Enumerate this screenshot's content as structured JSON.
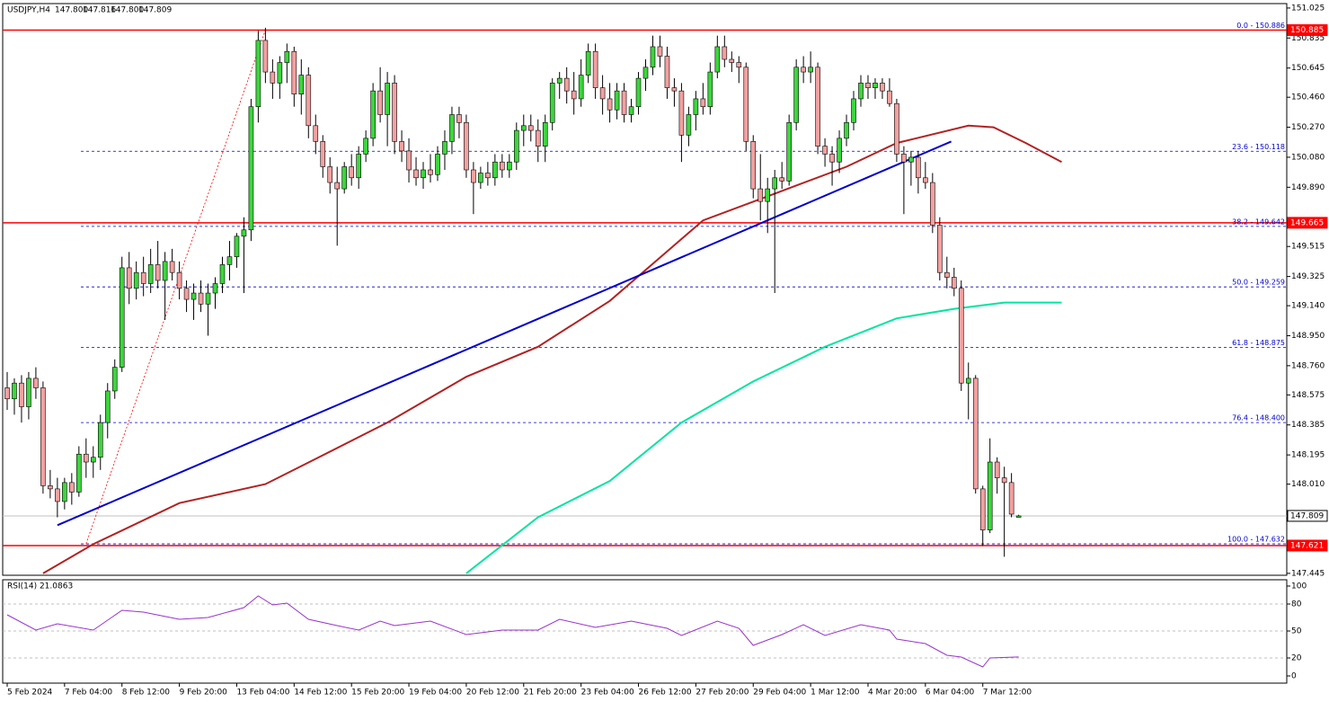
{
  "chart_data": [
    {
      "type": "candlestick",
      "title": "USDJPY,H4",
      "ohlc_text": [
        "147.800",
        "147.816",
        "147.800",
        "147.809"
      ],
      "xlim": [
        -0.625,
        178.375
      ],
      "ylim": [
        147.433,
        151.053
      ],
      "yticks": [
        151.025,
        150.835,
        150.645,
        {
          "value": 150.46,
          "label": "150.460"
        },
        {
          "value": 150.27,
          "label": "150.270"
        },
        {
          "value": 150.08,
          "label": "150.080"
        },
        {
          "value": 149.89,
          "label": "149.890"
        },
        149.515,
        149.325,
        {
          "value": 149.14,
          "label": "149.140"
        },
        {
          "value": 148.95,
          "label": "148.950"
        },
        {
          "value": 148.76,
          "label": "148.760"
        },
        148.575,
        148.385,
        148.195,
        {
          "value": 148.01,
          "label": "148.010"
        },
        147.445
      ],
      "xticks": [
        {
          "value": 0,
          "label": "5 Feb 2024"
        },
        {
          "value": 8,
          "label": "7 Feb 04:00"
        },
        {
          "value": 16,
          "label": "8 Feb 12:00"
        },
        {
          "value": 24,
          "label": "9 Feb 20:00"
        },
        {
          "value": 32,
          "label": "13 Feb 04:00"
        },
        {
          "value": 40,
          "label": "14 Feb 12:00"
        },
        {
          "value": 48,
          "label": "15 Feb 20:00"
        },
        {
          "value": 56,
          "label": "19 Feb 04:00"
        },
        {
          "value": 64,
          "label": "20 Feb 12:00"
        },
        {
          "value": 72,
          "label": "21 Feb 20:00"
        },
        {
          "value": 80,
          "label": "23 Feb 04:00"
        },
        {
          "value": 88,
          "label": "26 Feb 12:00"
        },
        {
          "value": 96,
          "label": "27 Feb 20:00"
        },
        {
          "value": 104,
          "label": "29 Feb 04:00"
        },
        {
          "value": 112,
          "label": "1 Mar 12:00"
        },
        {
          "value": 120,
          "label": "4 Mar 20:00"
        },
        {
          "value": 128,
          "label": "6 Mar 04:00"
        },
        {
          "value": 136,
          "label": "7 Mar 12:00"
        }
      ],
      "up_color": "#3cd63c",
      "down_color": "#f4a0a0",
      "ohlc": [
        [
          148.62,
          148.72,
          148.48,
          148.55
        ],
        [
          148.55,
          148.68,
          148.45,
          148.65
        ],
        [
          148.65,
          148.7,
          148.4,
          148.5
        ],
        [
          148.5,
          148.72,
          148.42,
          148.68
        ],
        [
          148.68,
          148.75,
          148.55,
          148.62
        ],
        [
          148.62,
          148.66,
          147.95,
          148.0
        ],
        [
          148.0,
          148.1,
          147.92,
          147.98
        ],
        [
          147.98,
          148.05,
          147.8,
          147.9
        ],
        [
          147.9,
          148.05,
          147.85,
          148.02
        ],
        [
          148.02,
          148.08,
          147.88,
          147.96
        ],
        [
          147.96,
          148.25,
          147.93,
          148.2
        ],
        [
          148.2,
          148.3,
          148.05,
          148.15
        ],
        [
          148.15,
          148.25,
          148.05,
          148.18
        ],
        [
          148.18,
          148.45,
          148.1,
          148.4
        ],
        [
          148.4,
          148.65,
          148.3,
          148.6
        ],
        [
          148.6,
          148.8,
          148.55,
          148.75
        ],
        [
          148.75,
          149.45,
          148.72,
          149.38
        ],
        [
          149.38,
          149.48,
          149.15,
          149.25
        ],
        [
          149.25,
          149.42,
          149.18,
          149.35
        ],
        [
          149.35,
          149.45,
          149.2,
          149.28
        ],
        [
          149.28,
          149.5,
          149.22,
          149.4
        ],
        [
          149.4,
          149.55,
          149.25,
          149.3
        ],
        [
          149.3,
          149.48,
          149.05,
          149.42
        ],
        [
          149.42,
          149.5,
          149.3,
          149.35
        ],
        [
          149.35,
          149.42,
          149.18,
          149.25
        ],
        [
          149.25,
          149.3,
          149.1,
          149.18
        ],
        [
          149.18,
          149.28,
          149.05,
          149.22
        ],
        [
          149.22,
          149.3,
          149.1,
          149.15
        ],
        [
          149.15,
          149.28,
          148.95,
          149.22
        ],
        [
          149.22,
          149.32,
          149.12,
          149.28
        ],
        [
          149.28,
          149.45,
          149.22,
          149.4
        ],
        [
          149.4,
          149.55,
          149.3,
          149.45
        ],
        [
          149.45,
          149.6,
          149.38,
          149.58
        ],
        [
          149.58,
          149.7,
          149.22,
          149.62
        ],
        [
          149.62,
          150.45,
          149.55,
          150.4
        ],
        [
          150.4,
          150.88,
          150.3,
          150.82
        ],
        [
          150.82,
          150.9,
          150.55,
          150.62
        ],
        [
          150.62,
          150.7,
          150.45,
          150.55
        ],
        [
          150.55,
          150.72,
          150.45,
          150.68
        ],
        [
          150.68,
          150.8,
          150.55,
          150.75
        ],
        [
          150.75,
          150.78,
          150.4,
          150.48
        ],
        [
          150.48,
          150.7,
          150.35,
          150.6
        ],
        [
          150.6,
          150.65,
          150.2,
          150.28
        ],
        [
          150.28,
          150.35,
          150.1,
          150.18
        ],
        [
          150.18,
          150.22,
          149.95,
          150.02
        ],
        [
          150.02,
          150.08,
          149.85,
          149.92
        ],
        [
          149.92,
          150.02,
          149.52,
          149.88
        ],
        [
          149.88,
          150.05,
          149.85,
          150.02
        ],
        [
          150.02,
          150.1,
          149.9,
          149.95
        ],
        [
          149.95,
          150.15,
          149.88,
          150.1
        ],
        [
          150.1,
          150.25,
          150.05,
          150.2
        ],
        [
          150.2,
          150.55,
          150.15,
          150.5
        ],
        [
          150.5,
          150.65,
          150.3,
          150.35
        ],
        [
          150.35,
          150.62,
          150.15,
          150.55
        ],
        [
          150.55,
          150.6,
          150.1,
          150.18
        ],
        [
          150.18,
          150.25,
          150.05,
          150.12
        ],
        [
          150.12,
          150.2,
          149.92,
          150.0
        ],
        [
          150.0,
          150.08,
          149.9,
          149.95
        ],
        [
          149.95,
          150.05,
          149.88,
          150.0
        ],
        [
          150.0,
          150.1,
          149.92,
          149.97
        ],
        [
          149.97,
          150.15,
          149.93,
          150.1
        ],
        [
          150.1,
          150.25,
          150.0,
          150.18
        ],
        [
          150.18,
          150.4,
          150.1,
          150.35
        ],
        [
          150.35,
          150.4,
          150.2,
          150.3
        ],
        [
          150.3,
          150.35,
          149.95,
          150.0
        ],
        [
          150.0,
          150.05,
          149.72,
          149.92
        ],
        [
          149.92,
          150.02,
          149.88,
          149.98
        ],
        [
          149.98,
          150.05,
          149.9,
          149.95
        ],
        [
          149.95,
          150.1,
          149.9,
          150.05
        ],
        [
          150.05,
          150.1,
          149.95,
          150.0
        ],
        [
          150.0,
          150.1,
          149.95,
          150.05
        ],
        [
          150.05,
          150.3,
          150.0,
          150.25
        ],
        [
          150.25,
          150.35,
          150.15,
          150.28
        ],
        [
          150.28,
          150.35,
          150.18,
          150.25
        ],
        [
          150.25,
          150.32,
          150.05,
          150.15
        ],
        [
          150.15,
          150.35,
          150.05,
          150.3
        ],
        [
          150.3,
          150.58,
          150.25,
          150.55
        ],
        [
          150.55,
          150.62,
          150.45,
          150.58
        ],
        [
          150.58,
          150.65,
          150.42,
          150.5
        ],
        [
          150.5,
          150.62,
          150.35,
          150.45
        ],
        [
          150.45,
          150.7,
          150.4,
          150.6
        ],
        [
          150.6,
          150.8,
          150.55,
          150.75
        ],
        [
          150.75,
          150.8,
          150.45,
          150.52
        ],
        [
          150.52,
          150.6,
          150.35,
          150.45
        ],
        [
          150.45,
          150.55,
          150.3,
          150.38
        ],
        [
          150.38,
          150.55,
          150.32,
          150.5
        ],
        [
          150.5,
          150.55,
          150.3,
          150.35
        ],
        [
          150.35,
          150.45,
          150.3,
          150.4
        ],
        [
          150.4,
          150.62,
          150.35,
          150.58
        ],
        [
          150.58,
          150.7,
          150.5,
          150.65
        ],
        [
          150.65,
          150.85,
          150.6,
          150.78
        ],
        [
          150.78,
          150.85,
          150.65,
          150.72
        ],
        [
          150.72,
          150.78,
          150.45,
          150.52
        ],
        [
          150.52,
          150.58,
          150.4,
          150.5
        ],
        [
          150.5,
          150.55,
          150.05,
          150.22
        ],
        [
          150.22,
          150.4,
          150.15,
          150.35
        ],
        [
          150.35,
          150.5,
          150.25,
          150.45
        ],
        [
          150.45,
          150.55,
          150.35,
          150.4
        ],
        [
          150.4,
          150.68,
          150.35,
          150.62
        ],
        [
          150.62,
          150.85,
          150.58,
          150.78
        ],
        [
          150.78,
          150.85,
          150.65,
          150.7
        ],
        [
          150.7,
          150.75,
          150.62,
          150.68
        ],
        [
          150.68,
          150.72,
          150.55,
          150.65
        ],
        [
          150.65,
          150.68,
          150.12,
          150.18
        ],
        [
          150.18,
          150.22,
          149.82,
          149.88
        ],
        [
          149.88,
          150.1,
          149.68,
          149.8
        ],
        [
          149.8,
          149.95,
          149.6,
          149.88
        ],
        [
          149.88,
          150.0,
          149.22,
          149.95
        ],
        [
          149.95,
          150.05,
          149.88,
          149.93
        ],
        [
          149.93,
          150.35,
          149.9,
          150.3
        ],
        [
          150.3,
          150.7,
          150.25,
          150.65
        ],
        [
          150.65,
          150.72,
          150.55,
          150.62
        ],
        [
          150.62,
          150.75,
          150.55,
          150.65
        ],
        [
          150.65,
          150.68,
          150.1,
          150.15
        ],
        [
          150.15,
          150.2,
          150.02,
          150.1
        ],
        [
          150.1,
          150.15,
          149.9,
          150.05
        ],
        [
          150.05,
          150.25,
          149.98,
          150.2
        ],
        [
          150.2,
          150.35,
          150.15,
          150.3
        ],
        [
          150.3,
          150.5,
          150.25,
          150.45
        ],
        [
          150.45,
          150.6,
          150.4,
          150.55
        ],
        [
          150.55,
          150.6,
          150.45,
          150.52
        ],
        [
          150.52,
          150.58,
          150.45,
          150.55
        ],
        [
          150.55,
          150.58,
          150.45,
          150.5
        ],
        [
          150.5,
          150.58,
          150.4,
          150.42
        ],
        [
          150.42,
          150.45,
          150.05,
          150.1
        ],
        [
          150.1,
          150.15,
          149.72,
          150.05
        ],
        [
          150.05,
          150.12,
          149.9,
          150.08
        ],
        [
          150.08,
          150.12,
          149.85,
          149.95
        ],
        [
          149.95,
          150.05,
          149.88,
          149.92
        ],
        [
          149.92,
          149.98,
          149.6,
          149.65
        ],
        [
          149.65,
          149.7,
          149.3,
          149.35
        ],
        [
          149.35,
          149.45,
          149.25,
          149.32
        ],
        [
          149.32,
          149.38,
          149.2,
          149.25
        ],
        [
          149.25,
          149.3,
          148.6,
          148.65
        ],
        [
          148.65,
          148.78,
          148.42,
          148.68
        ],
        [
          148.68,
          148.7,
          147.95,
          147.98
        ],
        [
          147.98,
          148.0,
          147.62,
          147.72
        ],
        [
          147.72,
          148.3,
          147.7,
          148.15
        ],
        [
          148.15,
          148.18,
          147.95,
          148.05
        ],
        [
          148.05,
          148.12,
          147.55,
          148.02
        ],
        [
          148.02,
          148.08,
          147.8,
          147.82
        ],
        [
          147.8,
          147.816,
          147.8,
          147.809
        ]
      ],
      "overlays": [
        {
          "color": "#b22222",
          "x": [
            5,
            12,
            24,
            36,
            43,
            53,
            64,
            74,
            84,
            97,
            107,
            117,
            124,
            134,
            137.5,
            142,
            147
          ],
          "values": [
            147.445,
            147.63,
            147.89,
            148.01,
            148.17,
            148.4,
            148.69,
            148.88,
            149.17,
            149.68,
            149.85,
            150.02,
            150.17,
            150.28,
            150.27,
            150.17,
            150.05
          ]
        },
        {
          "color": "#00e5a0",
          "x": [
            64,
            74,
            84,
            94,
            104,
            114,
            124,
            132,
            139,
            147
          ],
          "values": [
            147.445,
            147.8,
            148.03,
            148.4,
            148.66,
            148.88,
            149.06,
            149.12,
            149.16,
            149.16
          ]
        },
        {
          "color": "#0000cd",
          "x": [
            7,
            131.6
          ],
          "values": [
            147.75,
            150.18
          ]
        },
        {
          "color": "#ff0000",
          "dashed": true,
          "x": [
            11,
            36
          ],
          "values": [
            147.632,
            150.886
          ]
        }
      ],
      "hlines": [
        150.885,
        149.665,
        147.621
      ],
      "hline_color": "#ff0000",
      "last_price": 147.809,
      "fib_color": "#0000cc",
      "fib": [
        {
          "label": "0.0 - 150.886",
          "value": 150.886
        },
        {
          "label": "23.6 - 150.118",
          "value": 150.118
        },
        {
          "label": "38.2 - 149.642",
          "value": 149.642
        },
        {
          "label": "50.0 - 149.259",
          "value": 149.259
        },
        {
          "label": "61.8 - 148.875",
          "value": 148.875
        },
        {
          "label": "76.4 - 148.400",
          "value": 148.4
        },
        {
          "label": "100.0 - 147.632",
          "value": 147.632
        }
      ]
    },
    {
      "type": "line",
      "title": "RSI(14) 21.0863",
      "color": "#9932cc",
      "xlim": [
        -0.625,
        178.375
      ],
      "ylim": [
        -8,
        107
      ],
      "yticks": [
        100,
        80,
        50,
        20,
        0
      ],
      "levels": [
        80,
        50,
        20
      ],
      "x": [
        0,
        4,
        7,
        12,
        16,
        19,
        24,
        28,
        33,
        35,
        37,
        39,
        42,
        46,
        49,
        52,
        54,
        59,
        64,
        69,
        74,
        77,
        82,
        87,
        92,
        94,
        99,
        102,
        104,
        108,
        111,
        114,
        119,
        123,
        124,
        128,
        131,
        133,
        136,
        137,
        141
      ],
      "values": [
        68,
        51,
        58,
        51,
        73,
        71,
        63,
        65,
        76,
        89,
        79,
        81,
        63,
        56,
        51,
        61,
        56,
        61,
        46,
        51,
        51,
        63,
        54,
        61,
        53,
        45,
        61,
        53,
        34,
        46,
        57,
        45,
        57,
        51,
        41,
        36,
        23,
        21,
        10,
        20,
        21.0863
      ]
    }
  ]
}
